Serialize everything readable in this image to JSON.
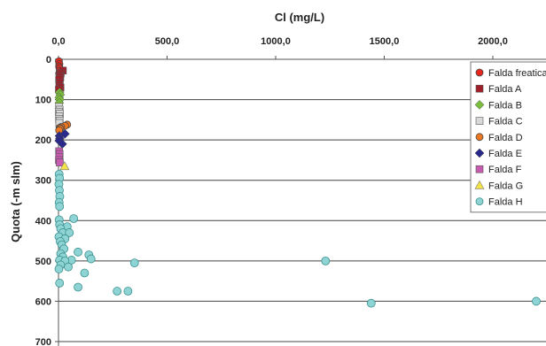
{
  "chart_data": {
    "type": "scatter",
    "title": "",
    "xlabel": "Cl (mg/L)",
    "ylabel": "Quota (-m slm)",
    "x_axis_position": "top",
    "y_axis_inverted": true,
    "xlim": [
      0,
      2200
    ],
    "ylim": [
      0,
      700
    ],
    "x_ticks": [
      0,
      500,
      1000,
      1500,
      2000
    ],
    "x_tick_labels": [
      "0,0",
      "500,0",
      "1000,0",
      "1500,0",
      "2000,0"
    ],
    "y_ticks": [
      0,
      100,
      200,
      300,
      400,
      500,
      600,
      700
    ],
    "y_tick_labels": [
      "0",
      "100",
      "200",
      "300",
      "400",
      "500",
      "600",
      "700"
    ],
    "horizontal_grid": true,
    "legend_position": "right",
    "series": [
      {
        "name": "Falda freatica",
        "marker": "circle",
        "color": "#e8261c",
        "points": [
          [
            2,
            5
          ],
          [
            4,
            12
          ],
          [
            3,
            18
          ],
          [
            5,
            22
          ],
          [
            6,
            28
          ],
          [
            3,
            35
          ],
          [
            8,
            40
          ]
        ]
      },
      {
        "name": "Falda A",
        "marker": "square",
        "color": "#a01e28",
        "points": [
          [
            20,
            28
          ],
          [
            10,
            35
          ],
          [
            5,
            40
          ],
          [
            8,
            45
          ],
          [
            3,
            50
          ],
          [
            6,
            58
          ],
          [
            4,
            65
          ],
          [
            9,
            70
          ],
          [
            2,
            75
          ]
        ]
      },
      {
        "name": "Falda B",
        "marker": "diamond",
        "color": "#7bbd3c",
        "points": [
          [
            5,
            82
          ],
          [
            8,
            88
          ],
          [
            3,
            95
          ],
          [
            6,
            100
          ],
          [
            4,
            108
          ]
        ]
      },
      {
        "name": "Falda C",
        "marker": "square",
        "color": "#d9d9d9",
        "points": [
          [
            3,
            118
          ],
          [
            5,
            125
          ],
          [
            2,
            130
          ],
          [
            6,
            135
          ],
          [
            4,
            142
          ],
          [
            3,
            148
          ],
          [
            5,
            152
          ],
          [
            4,
            158
          ]
        ]
      },
      {
        "name": "Falda D",
        "marker": "circle",
        "color": "#ee7722",
        "points": [
          [
            40,
            162
          ],
          [
            30,
            165
          ],
          [
            12,
            168
          ],
          [
            5,
            170
          ],
          [
            8,
            172
          ],
          [
            3,
            176
          ]
        ]
      },
      {
        "name": "Falda E",
        "marker": "diamond",
        "color": "#2a2a8c",
        "points": [
          [
            4,
            190
          ],
          [
            6,
            196
          ],
          [
            3,
            202
          ],
          [
            30,
            185
          ],
          [
            18,
            210
          ]
        ]
      },
      {
        "name": "Falda F",
        "marker": "square",
        "color": "#c65bb0",
        "points": [
          [
            3,
            228
          ],
          [
            5,
            235
          ],
          [
            4,
            242
          ],
          [
            2,
            250
          ],
          [
            6,
            256
          ]
        ]
      },
      {
        "name": "Falda G",
        "marker": "triangle",
        "color": "#f3e24a",
        "points": [
          [
            28,
            265
          ]
        ]
      },
      {
        "name": "Falda H",
        "marker": "circle",
        "color": "#8fd4d4",
        "points": [
          [
            3,
            285
          ],
          [
            5,
            295
          ],
          [
            2,
            310
          ],
          [
            4,
            325
          ],
          [
            6,
            340
          ],
          [
            3,
            355
          ],
          [
            5,
            365
          ],
          [
            70,
            395
          ],
          [
            3,
            398
          ],
          [
            5,
            410
          ],
          [
            40,
            415
          ],
          [
            10,
            420
          ],
          [
            20,
            430
          ],
          [
            50,
            430
          ],
          [
            2,
            440
          ],
          [
            30,
            445
          ],
          [
            8,
            452
          ],
          [
            15,
            460
          ],
          [
            25,
            470
          ],
          [
            90,
            478
          ],
          [
            10,
            482
          ],
          [
            140,
            485
          ],
          [
            20,
            490
          ],
          [
            150,
            495
          ],
          [
            5,
            498
          ],
          [
            60,
            498
          ],
          [
            30,
            500
          ],
          [
            1230,
            500
          ],
          [
            350,
            505
          ],
          [
            10,
            510
          ],
          [
            45,
            515
          ],
          [
            2,
            520
          ],
          [
            120,
            530
          ],
          [
            5,
            555
          ],
          [
            90,
            565
          ],
          [
            270,
            575
          ],
          [
            320,
            575
          ],
          [
            1440,
            605
          ],
          [
            2200,
            600
          ]
        ]
      }
    ]
  }
}
